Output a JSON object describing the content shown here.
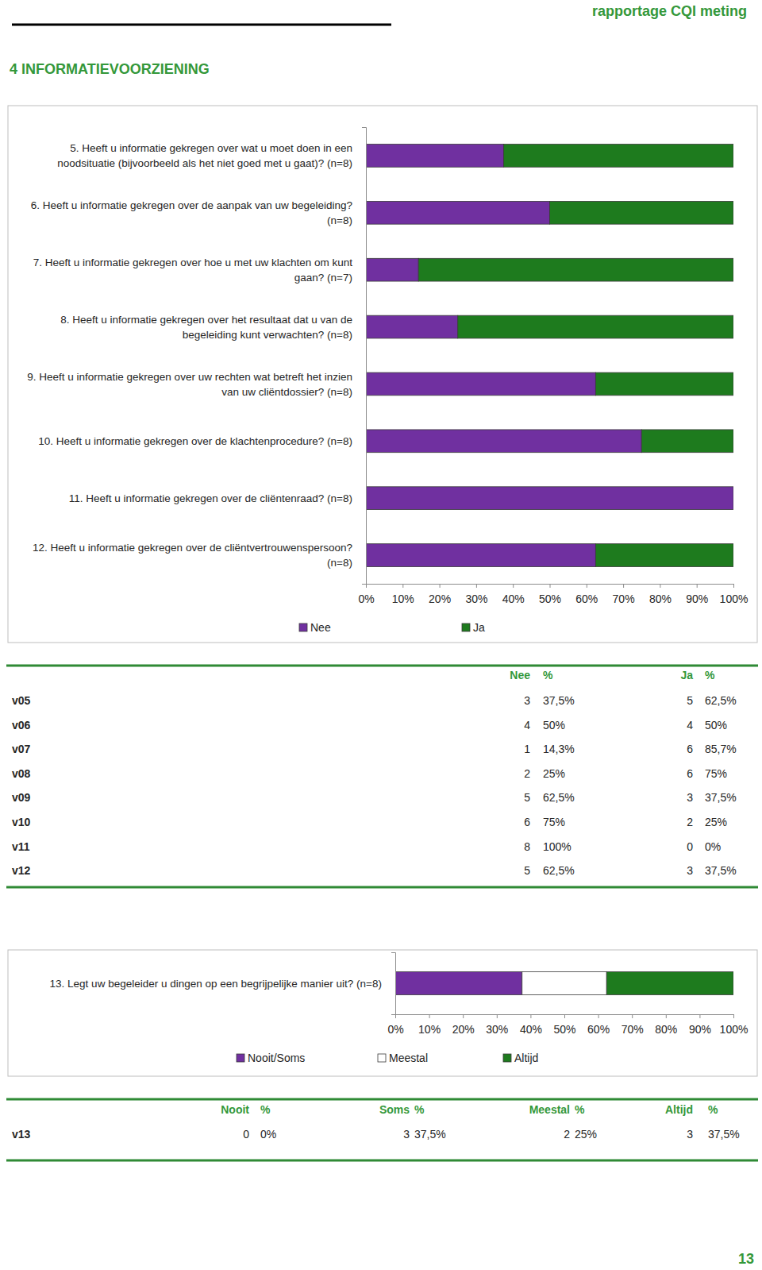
{
  "header": {
    "title": "rapportage CQI meting"
  },
  "section_title": "4 INFORMATIEVOORZIENING",
  "chart_data": [
    {
      "type": "bar",
      "orientation": "horizontal",
      "stacked": true,
      "legend": "bottom",
      "categories": [
        "5. Heeft u informatie gekregen over wat u moet doen in een noodsituatie (bijvoorbeeld als het niet goed met u gaat)? (n=8)",
        "6. Heeft u informatie gekregen over de aanpak van uw begeleiding? (n=8)",
        "7. Heeft u informatie gekregen over hoe u met uw klachten om kunt gaan? (n=7)",
        "8. Heeft u informatie gekregen over het resultaat dat u van de begeleiding kunt verwachten? (n=8)",
        "9. Heeft u informatie gekregen over uw rechten wat betreft het inzien van uw cliëntdossier? (n=8)",
        "10. Heeft u informatie gekregen over de klachtenprocedure? (n=8)",
        "11. Heeft u informatie gekregen over de cliëntenraad? (n=8)",
        "12. Heeft u informatie gekregen over de cliëntvertrouwenspersoon? (n=8)"
      ],
      "series": [
        {
          "name": "Nee",
          "color": "#7030a0",
          "values": [
            37.5,
            50,
            14.3,
            25,
            62.5,
            75,
            100,
            62.5
          ]
        },
        {
          "name": "Ja",
          "color": "#1e7b1e",
          "values": [
            62.5,
            50,
            85.7,
            75,
            37.5,
            25,
            0,
            37.5
          ]
        }
      ],
      "xlim": [
        0,
        100
      ],
      "xticks": [
        {
          "value": 0,
          "label": "0%"
        },
        {
          "value": 10,
          "label": "10%"
        },
        {
          "value": 20,
          "label": "20%"
        },
        {
          "value": 30,
          "label": "30%"
        },
        {
          "value": 40,
          "label": "40%"
        },
        {
          "value": 50,
          "label": "50%"
        },
        {
          "value": 60,
          "label": "60%"
        },
        {
          "value": 70,
          "label": "70%"
        },
        {
          "value": 80,
          "label": "80%"
        },
        {
          "value": 90,
          "label": "90%"
        },
        {
          "value": 100,
          "label": "100%"
        }
      ]
    },
    {
      "type": "bar",
      "orientation": "horizontal",
      "stacked": true,
      "legend": "bottom",
      "categories": [
        "13. Legt uw begeleider u dingen op een begrijpelijke manier uit? (n=8)"
      ],
      "series": [
        {
          "name": "Nooit/Soms",
          "color": "#7030a0",
          "values": [
            37.5
          ]
        },
        {
          "name": "Meestal",
          "color": "#ffffff",
          "values": [
            25
          ]
        },
        {
          "name": "Altijd",
          "color": "#1e7b1e",
          "values": [
            37.5
          ]
        }
      ],
      "xlim": [
        0,
        100
      ],
      "xticks": [
        {
          "value": 0,
          "label": "0%"
        },
        {
          "value": 10,
          "label": "10%"
        },
        {
          "value": 20,
          "label": "20%"
        },
        {
          "value": 30,
          "label": "30%"
        },
        {
          "value": 40,
          "label": "40%"
        },
        {
          "value": 50,
          "label": "50%"
        },
        {
          "value": 60,
          "label": "60%"
        },
        {
          "value": 70,
          "label": "70%"
        },
        {
          "value": 80,
          "label": "80%"
        },
        {
          "value": 90,
          "label": "90%"
        },
        {
          "value": 100,
          "label": "100%"
        }
      ]
    }
  ],
  "tables": [
    {
      "columns": [
        "Nee",
        "%",
        "Ja",
        "%"
      ],
      "rows": [
        [
          "v05",
          "3",
          "37,5%",
          "5",
          "62,5%"
        ],
        [
          "v06",
          "4",
          "50%",
          "4",
          "50%"
        ],
        [
          "v07",
          "1",
          "14,3%",
          "6",
          "85,7%"
        ],
        [
          "v08",
          "2",
          "25%",
          "6",
          "75%"
        ],
        [
          "v09",
          "5",
          "62,5%",
          "3",
          "37,5%"
        ],
        [
          "v10",
          "6",
          "75%",
          "2",
          "25%"
        ],
        [
          "v11",
          "8",
          "100%",
          "0",
          "0%"
        ],
        [
          "v12",
          "5",
          "62,5%",
          "3",
          "37,5%"
        ]
      ]
    },
    {
      "columns": [
        "Nooit",
        "%",
        "Soms",
        "%",
        "Meestal",
        "%",
        "Altijd",
        "%"
      ],
      "rows": [
        [
          "v13",
          "0",
          "0%",
          "3",
          "37,5%",
          "2",
          "25%",
          "3",
          "37,5%"
        ]
      ]
    }
  ],
  "page_number": "13"
}
